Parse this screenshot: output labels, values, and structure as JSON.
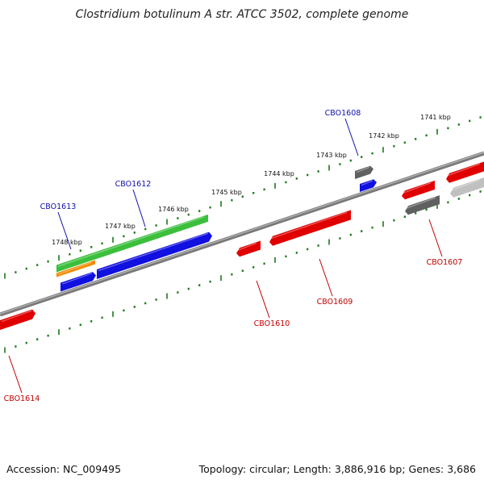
{
  "title": "Clostridium botulinum A str. ATCC 3502, complete genome",
  "footer": {
    "accession": "Accession: NC_009495",
    "stats": "Topology: circular; Length: 3,886,916 bp; Genes: 3,686"
  },
  "colors": {
    "tick": "#1a7a1a",
    "backbone": "#808080",
    "red": "#e00000",
    "blue": "#1010e0",
    "green": "#3cbf3c",
    "orange": "#f28a00",
    "darkgray": "#606060",
    "lightgray": "#c0c0c0",
    "label_blue": "#1010b0",
    "label_red": "#c00000"
  },
  "kbp_labels": [
    {
      "text": "1741 kbp"
    },
    {
      "text": "1742 kbp"
    },
    {
      "text": "1743 kbp"
    },
    {
      "text": "1744 kbp"
    },
    {
      "text": "1745 kbp"
    },
    {
      "text": "1746 kbp"
    },
    {
      "text": "1747 kbp"
    },
    {
      "text": "1748 kbp"
    }
  ],
  "loci": [
    {
      "name": "CBO1608",
      "color": "label_blue"
    },
    {
      "name": "CBO1612",
      "color": "label_blue"
    },
    {
      "name": "CBO1613",
      "color": "label_blue"
    },
    {
      "name": "CBO1607",
      "color": "label_red"
    },
    {
      "name": "CBO1609",
      "color": "label_red"
    },
    {
      "name": "CBO1610",
      "color": "label_red"
    },
    {
      "name": "CBO1614",
      "color": "label_red"
    }
  ]
}
